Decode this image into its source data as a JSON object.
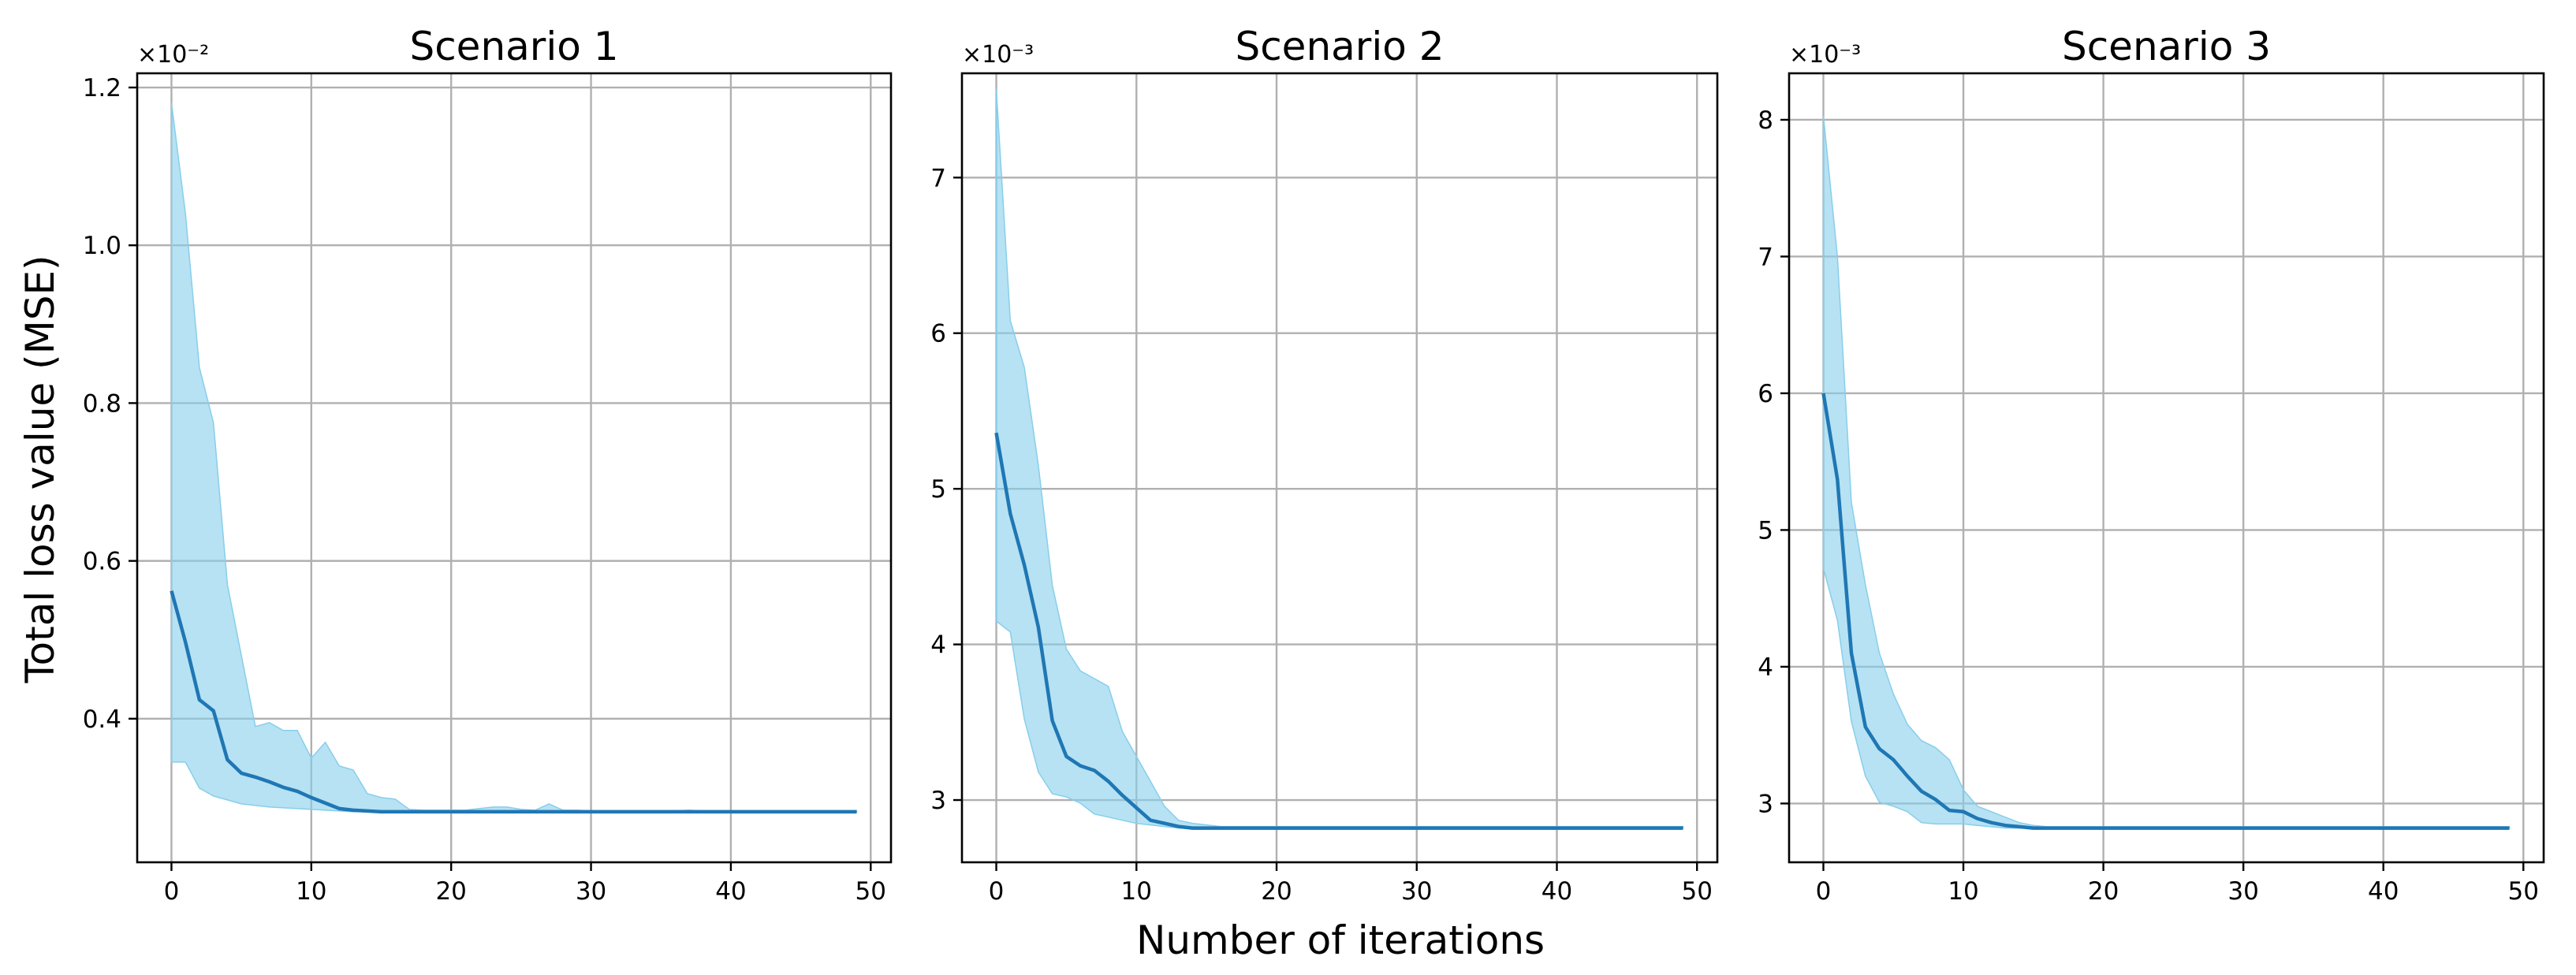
{
  "figure": {
    "xlabel": "Number of iterations",
    "ylabel": "Total loss value (MSE)"
  },
  "colors": {
    "line": "#1f77b4",
    "band": "#87ceeb",
    "grid": "#b0b0b0",
    "axes": "#000000"
  },
  "chart_data": [
    {
      "type": "line",
      "title": "Scenario 1",
      "ylabel": "Total loss value (MSE)",
      "xlabel": "",
      "offset_text": "×10⁻²",
      "scale": 0.01,
      "xlim": [
        -2.45,
        51.45
      ],
      "ylim": [
        0.00218,
        0.01218
      ],
      "xticks": [
        0,
        10,
        20,
        30,
        40,
        50
      ],
      "xtick_labels": [
        "0",
        "10",
        "20",
        "30",
        "40",
        "50"
      ],
      "yticks": [
        0.004,
        0.006,
        0.008,
        0.01,
        0.012
      ],
      "ytick_labels": [
        "0.4",
        "0.6",
        "0.8",
        "1.0",
        "1.2"
      ],
      "grid": true,
      "legend": "none",
      "x": [
        0,
        1,
        2,
        3,
        4,
        5,
        6,
        7,
        8,
        9,
        10,
        11,
        12,
        13,
        14,
        15,
        16,
        17,
        18,
        19,
        20,
        21,
        22,
        23,
        24,
        25,
        26,
        27,
        28,
        29,
        30,
        31,
        32,
        33,
        34,
        35,
        36,
        37,
        38,
        39,
        40,
        41,
        42,
        43,
        44,
        45,
        46,
        47,
        48,
        49
      ],
      "series": [
        {
          "mean": [
            0.00562,
            0.00497,
            0.00424,
            0.0041,
            0.00348,
            0.00331,
            0.00326,
            0.0032,
            0.00313,
            0.00308,
            0.003,
            0.00293,
            0.00286,
            0.00284,
            0.00283,
            0.00282,
            0.00282,
            0.00282,
            0.00282,
            0.00282,
            0.00282,
            0.00282,
            0.00282,
            0.00282,
            0.00282,
            0.00282,
            0.00282,
            0.00282,
            0.00282,
            0.00282,
            0.00282,
            0.00282,
            0.00282,
            0.00282,
            0.00282,
            0.00282,
            0.00282,
            0.00282,
            0.00282,
            0.00282,
            0.00282,
            0.00282,
            0.00282,
            0.00282,
            0.00282,
            0.00282,
            0.00282,
            0.00282,
            0.00282,
            0.00282
          ],
          "lower": [
            0.00345,
            0.00345,
            0.00312,
            0.00302,
            0.00297,
            0.00292,
            0.0029,
            0.00288,
            0.00287,
            0.00286,
            0.00285,
            0.00284,
            0.00283,
            0.00282,
            0.00282,
            0.00282,
            0.00282,
            0.00282,
            0.00282,
            0.00282,
            0.00282,
            0.00282,
            0.00282,
            0.00282,
            0.00282,
            0.00282,
            0.00282,
            0.00282,
            0.00282,
            0.00282,
            0.00282,
            0.00282,
            0.00282,
            0.00282,
            0.00282,
            0.00282,
            0.00282,
            0.00282,
            0.00282,
            0.00282,
            0.00282,
            0.00282,
            0.00282,
            0.00282,
            0.00282,
            0.00282,
            0.00282,
            0.00282,
            0.00282,
            0.00282
          ],
          "upper": [
            0.0118,
            0.0104,
            0.00845,
            0.00775,
            0.0057,
            0.0048,
            0.0039,
            0.00395,
            0.00385,
            0.00385,
            0.0035,
            0.0037,
            0.0034,
            0.00335,
            0.00305,
            0.003,
            0.00298,
            0.00285,
            0.00284,
            0.00284,
            0.00284,
            0.00284,
            0.00286,
            0.00288,
            0.00288,
            0.00285,
            0.00284,
            0.00292,
            0.00284,
            0.00284,
            0.00283,
            0.00283,
            0.00283,
            0.00283,
            0.00283,
            0.00283,
            0.00283,
            0.00284,
            0.00283,
            0.00283,
            0.00283,
            0.00283,
            0.00283,
            0.00283,
            0.00283,
            0.00283,
            0.00283,
            0.00283,
            0.00283,
            0.00283
          ]
        }
      ]
    },
    {
      "type": "line",
      "title": "Scenario 2",
      "ylabel": "",
      "xlabel": "Number of iterations",
      "offset_text": "×10⁻³",
      "scale": 0.001,
      "xlim": [
        -2.45,
        51.45
      ],
      "ylim": [
        0.0026,
        0.00767
      ],
      "xticks": [
        0,
        10,
        20,
        30,
        40,
        50
      ],
      "xtick_labels": [
        "0",
        "10",
        "20",
        "30",
        "40",
        "50"
      ],
      "yticks": [
        0.003,
        0.004,
        0.005,
        0.006,
        0.007
      ],
      "ytick_labels": [
        "3",
        "4",
        "5",
        "6",
        "7"
      ],
      "grid": true,
      "legend": "none",
      "x": [
        0,
        1,
        2,
        3,
        4,
        5,
        6,
        7,
        8,
        9,
        10,
        11,
        12,
        13,
        14,
        15,
        16,
        17,
        18,
        19,
        20,
        21,
        22,
        23,
        24,
        25,
        26,
        27,
        28,
        29,
        30,
        31,
        32,
        33,
        34,
        35,
        36,
        37,
        38,
        39,
        40,
        41,
        42,
        43,
        44,
        45,
        46,
        47,
        48,
        49
      ],
      "series": [
        {
          "mean": [
            0.00536,
            0.00484,
            0.00451,
            0.00411,
            0.00351,
            0.00328,
            0.00322,
            0.00319,
            0.00312,
            0.00303,
            0.00295,
            0.00287,
            0.00285,
            0.00283,
            0.00282,
            0.00282,
            0.00282,
            0.00282,
            0.00282,
            0.00282,
            0.00282,
            0.00282,
            0.00282,
            0.00282,
            0.00282,
            0.00282,
            0.00282,
            0.00282,
            0.00282,
            0.00282,
            0.00282,
            0.00282,
            0.00282,
            0.00282,
            0.00282,
            0.00282,
            0.00282,
            0.00282,
            0.00282,
            0.00282,
            0.00282,
            0.00282,
            0.00282,
            0.00282,
            0.00282,
            0.00282,
            0.00282,
            0.00282,
            0.00282,
            0.00282
          ],
          "lower": [
            0.00415,
            0.00408,
            0.00352,
            0.00318,
            0.00304,
            0.00302,
            0.00298,
            0.00291,
            0.00289,
            0.00287,
            0.00285,
            0.00284,
            0.00283,
            0.00282,
            0.00282,
            0.00282,
            0.00282,
            0.00282,
            0.00282,
            0.00282,
            0.00282,
            0.00282,
            0.00282,
            0.00282,
            0.00282,
            0.00282,
            0.00282,
            0.00282,
            0.00282,
            0.00282,
            0.00282,
            0.00282,
            0.00282,
            0.00282,
            0.00282,
            0.00282,
            0.00282,
            0.00282,
            0.00282,
            0.00282,
            0.00282,
            0.00282,
            0.00282,
            0.00282,
            0.00282,
            0.00282,
            0.00282,
            0.00282,
            0.00282,
            0.00282
          ],
          "upper": [
            0.00757,
            0.00608,
            0.00578,
            0.00515,
            0.00438,
            0.00397,
            0.00383,
            0.00378,
            0.00373,
            0.00344,
            0.00328,
            0.00312,
            0.00296,
            0.00287,
            0.00285,
            0.00284,
            0.00283,
            0.00283,
            0.00283,
            0.00283,
            0.00283,
            0.00283,
            0.00283,
            0.00283,
            0.00283,
            0.00283,
            0.00283,
            0.00283,
            0.00283,
            0.00283,
            0.00283,
            0.00283,
            0.00283,
            0.00283,
            0.00283,
            0.00283,
            0.00283,
            0.00283,
            0.00283,
            0.00283,
            0.00283,
            0.00283,
            0.00283,
            0.00283,
            0.00283,
            0.00283,
            0.00283,
            0.00283,
            0.00283,
            0.00283
          ]
        }
      ]
    },
    {
      "type": "line",
      "title": "Scenario 3",
      "ylabel": "",
      "xlabel": "",
      "offset_text": "×10⁻³",
      "scale": 0.001,
      "xlim": [
        -2.45,
        51.45
      ],
      "ylim": [
        0.00257,
        0.00834
      ],
      "xticks": [
        0,
        10,
        20,
        30,
        40,
        50
      ],
      "xtick_labels": [
        "0",
        "10",
        "20",
        "30",
        "40",
        "50"
      ],
      "yticks": [
        0.003,
        0.004,
        0.005,
        0.006,
        0.007,
        0.008
      ],
      "ytick_labels": [
        "3",
        "4",
        "5",
        "6",
        "7",
        "8"
      ],
      "grid": true,
      "legend": "none",
      "x": [
        0,
        1,
        2,
        3,
        4,
        5,
        6,
        7,
        8,
        9,
        10,
        11,
        12,
        13,
        14,
        15,
        16,
        17,
        18,
        19,
        20,
        21,
        22,
        23,
        24,
        25,
        26,
        27,
        28,
        29,
        30,
        31,
        32,
        33,
        34,
        35,
        36,
        37,
        38,
        39,
        40,
        41,
        42,
        43,
        44,
        45,
        46,
        47,
        48,
        49
      ],
      "series": [
        {
          "mean": [
            0.006,
            0.00537,
            0.0041,
            0.00356,
            0.0034,
            0.00332,
            0.0032,
            0.00309,
            0.00303,
            0.00295,
            0.00294,
            0.00289,
            0.00286,
            0.00284,
            0.00283,
            0.00282,
            0.00282,
            0.00282,
            0.00282,
            0.00282,
            0.00282,
            0.00282,
            0.00282,
            0.00282,
            0.00282,
            0.00282,
            0.00282,
            0.00282,
            0.00282,
            0.00282,
            0.00282,
            0.00282,
            0.00282,
            0.00282,
            0.00282,
            0.00282,
            0.00282,
            0.00282,
            0.00282,
            0.00282,
            0.00282,
            0.00282,
            0.00282,
            0.00282,
            0.00282,
            0.00282,
            0.00282,
            0.00282,
            0.00282,
            0.00282
          ],
          "lower": [
            0.00472,
            0.00434,
            0.0036,
            0.0032,
            0.00301,
            0.00298,
            0.00294,
            0.00286,
            0.00285,
            0.00285,
            0.00285,
            0.00284,
            0.00283,
            0.00282,
            0.00282,
            0.00282,
            0.00282,
            0.00282,
            0.00282,
            0.00282,
            0.00282,
            0.00282,
            0.00282,
            0.00282,
            0.00282,
            0.00282,
            0.00282,
            0.00282,
            0.00282,
            0.00282,
            0.00282,
            0.00282,
            0.00282,
            0.00282,
            0.00282,
            0.00282,
            0.00282,
            0.00282,
            0.00282,
            0.00282,
            0.00282,
            0.00282,
            0.00282,
            0.00282,
            0.00282,
            0.00282,
            0.00282,
            0.00282,
            0.00282,
            0.00282
          ],
          "upper": [
            0.00803,
            0.007,
            0.0052,
            0.0046,
            0.0041,
            0.0038,
            0.00358,
            0.00346,
            0.00341,
            0.00332,
            0.0031,
            0.00298,
            0.00294,
            0.0029,
            0.00286,
            0.00284,
            0.00283,
            0.00283,
            0.00283,
            0.00283,
            0.00283,
            0.00283,
            0.00283,
            0.00283,
            0.00283,
            0.00283,
            0.00283,
            0.00283,
            0.00283,
            0.00283,
            0.00283,
            0.00283,
            0.00283,
            0.00283,
            0.00283,
            0.00283,
            0.00283,
            0.00283,
            0.00283,
            0.00283,
            0.00283,
            0.00283,
            0.00283,
            0.00283,
            0.00283,
            0.00283,
            0.00283,
            0.00283,
            0.00283,
            0.00283
          ]
        }
      ]
    }
  ]
}
